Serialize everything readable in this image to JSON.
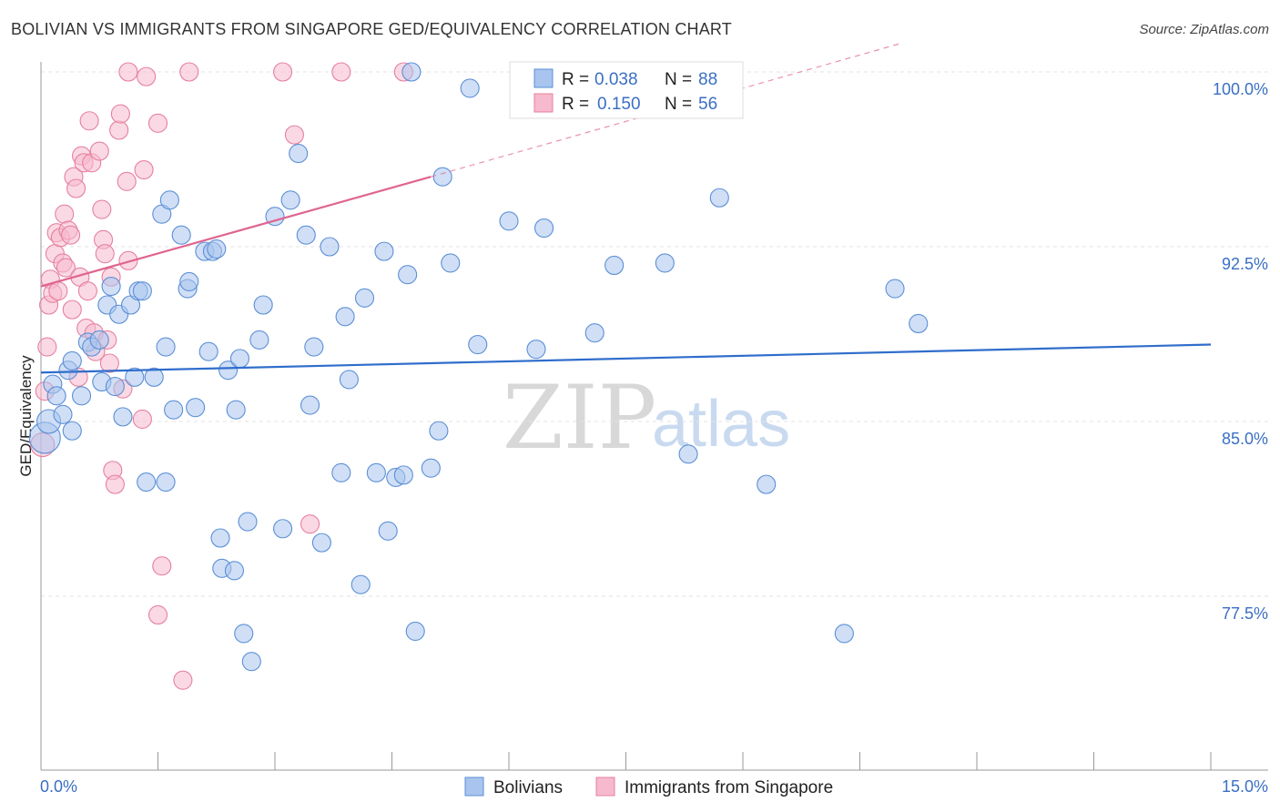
{
  "title": "BOLIVIAN VS IMMIGRANTS FROM SINGAPORE GED/EQUIVALENCY CORRELATION CHART",
  "source": "Source: ZipAtlas.com",
  "watermark": {
    "zip": "ZIP",
    "atlas": "atlas"
  },
  "colors": {
    "blue_fill": "#a9c4ee",
    "blue_stroke": "#5b8fd6",
    "blue_line": "#2f6dcc",
    "pink_fill": "#f6b9cd",
    "pink_stroke": "#e6809f",
    "pink_line": "#e0648f",
    "grid": "#e3e3e3",
    "axis": "#999999"
  },
  "legend": {
    "rows": [
      {
        "r_label": "R =",
        "r_value": "0.038",
        "n_label": "N =",
        "n_value": "88"
      },
      {
        "r_label": "R =",
        "r_value": "0.150",
        "n_label": "N =",
        "n_value": "56"
      }
    ]
  },
  "bottom_legend": {
    "series1": "Bolivians",
    "series2": "Immigrants from Singapore"
  },
  "chart_data": {
    "type": "scatter",
    "xlabel": "",
    "ylabel": "GED/Equivalency",
    "xlim": [
      0,
      15
    ],
    "ylim": [
      70.0,
      101.5
    ],
    "x_tick_labels": {
      "left": "0.0%",
      "right": "15.0%"
    },
    "y_ticks": [
      {
        "value": 100.0,
        "label": "100.0%"
      },
      {
        "value": 92.5,
        "label": "92.5%"
      },
      {
        "value": 85.0,
        "label": "85.0%"
      },
      {
        "value": 77.5,
        "label": "77.5%"
      }
    ],
    "series": [
      {
        "name": "Bolivians",
        "color": "blue",
        "trend": {
          "x0": 0.0,
          "y0": 87.1,
          "x1": 15.0,
          "y1": 88.3
        },
        "points": [
          [
            0.05,
            84.3,
            2
          ],
          [
            0.1,
            85.0,
            1
          ],
          [
            0.15,
            86.6,
            0
          ],
          [
            0.2,
            86.1,
            0
          ],
          [
            0.28,
            85.3,
            0
          ],
          [
            0.35,
            87.2,
            0
          ],
          [
            0.4,
            84.6,
            0
          ],
          [
            0.4,
            87.6,
            0
          ],
          [
            0.52,
            86.1,
            0
          ],
          [
            0.6,
            88.4,
            0
          ],
          [
            0.65,
            88.2,
            0
          ],
          [
            0.75,
            88.5,
            0
          ],
          [
            0.78,
            86.7,
            0
          ],
          [
            0.85,
            90.0,
            0
          ],
          [
            0.9,
            90.8,
            0
          ],
          [
            0.95,
            86.5,
            0
          ],
          [
            1.0,
            89.6,
            0
          ],
          [
            1.05,
            85.2,
            0
          ],
          [
            1.15,
            90.0,
            0
          ],
          [
            1.2,
            86.9,
            0
          ],
          [
            1.25,
            90.6,
            0
          ],
          [
            1.3,
            90.6,
            0
          ],
          [
            1.35,
            82.4,
            0
          ],
          [
            1.45,
            86.9,
            0
          ],
          [
            1.55,
            93.9,
            0
          ],
          [
            1.6,
            88.2,
            0
          ],
          [
            1.6,
            82.4,
            0
          ],
          [
            1.65,
            94.5,
            0
          ],
          [
            1.7,
            85.5,
            0
          ],
          [
            1.8,
            93.0,
            0
          ],
          [
            1.88,
            90.7,
            0
          ],
          [
            1.9,
            91.0,
            0
          ],
          [
            1.98,
            85.6,
            0
          ],
          [
            2.1,
            92.3,
            0
          ],
          [
            2.15,
            88.0,
            0
          ],
          [
            2.2,
            92.3,
            0
          ],
          [
            2.25,
            92.4,
            0
          ],
          [
            2.3,
            80.0,
            0
          ],
          [
            2.32,
            78.7,
            0
          ],
          [
            2.4,
            87.2,
            0
          ],
          [
            2.48,
            78.6,
            0
          ],
          [
            2.5,
            85.5,
            0
          ],
          [
            2.55,
            87.7,
            0
          ],
          [
            2.6,
            75.9,
            0
          ],
          [
            2.65,
            80.7,
            0
          ],
          [
            2.7,
            74.7,
            0
          ],
          [
            2.8,
            88.5,
            0
          ],
          [
            2.85,
            90.0,
            0
          ],
          [
            3.0,
            93.8,
            0
          ],
          [
            3.1,
            80.4,
            0
          ],
          [
            3.2,
            94.5,
            0
          ],
          [
            3.3,
            96.5,
            0
          ],
          [
            3.4,
            93.0,
            0
          ],
          [
            3.45,
            85.7,
            0
          ],
          [
            3.5,
            88.2,
            0
          ],
          [
            3.6,
            79.8,
            0
          ],
          [
            3.7,
            92.5,
            0
          ],
          [
            3.85,
            82.8,
            0
          ],
          [
            3.9,
            89.5,
            0
          ],
          [
            3.95,
            86.8,
            0
          ],
          [
            4.1,
            78.0,
            0
          ],
          [
            4.15,
            90.3,
            0
          ],
          [
            4.3,
            82.8,
            0
          ],
          [
            4.4,
            92.3,
            0
          ],
          [
            4.45,
            80.3,
            0
          ],
          [
            4.55,
            82.6,
            0
          ],
          [
            4.65,
            82.7,
            0
          ],
          [
            4.7,
            91.3,
            0
          ],
          [
            4.75,
            100.0,
            0
          ],
          [
            4.8,
            76.0,
            0
          ],
          [
            5.0,
            83.0,
            0
          ],
          [
            5.1,
            84.6,
            0
          ],
          [
            5.15,
            95.5,
            0
          ],
          [
            5.25,
            91.8,
            0
          ],
          [
            5.5,
            99.3,
            0
          ],
          [
            5.6,
            88.3,
            0
          ],
          [
            6.0,
            93.6,
            0
          ],
          [
            6.35,
            88.1,
            0
          ],
          [
            6.45,
            93.3,
            0
          ],
          [
            7.1,
            88.8,
            0
          ],
          [
            7.35,
            91.7,
            0
          ],
          [
            8.0,
            91.8,
            0
          ],
          [
            8.3,
            83.6,
            0
          ],
          [
            8.7,
            94.6,
            0
          ],
          [
            9.3,
            82.3,
            0
          ],
          [
            10.3,
            75.9,
            0
          ],
          [
            10.95,
            90.7,
            0
          ],
          [
            11.25,
            89.2,
            0
          ]
        ]
      },
      {
        "name": "Immigrants from Singapore",
        "color": "pink",
        "trend": {
          "x0": 0.0,
          "y0": 90.8,
          "x1": 5.0,
          "y1": 95.5,
          "dash_to_x": 11.0,
          "dash_to_y": 101.2
        },
        "points": [
          [
            0.02,
            84.0,
            1
          ],
          [
            0.05,
            86.3,
            0
          ],
          [
            0.08,
            88.2,
            0
          ],
          [
            0.1,
            90.0,
            0
          ],
          [
            0.12,
            91.1,
            0
          ],
          [
            0.15,
            90.5,
            0
          ],
          [
            0.18,
            92.2,
            0
          ],
          [
            0.2,
            93.1,
            0
          ],
          [
            0.22,
            90.6,
            0
          ],
          [
            0.25,
            92.9,
            0
          ],
          [
            0.28,
            91.8,
            0
          ],
          [
            0.3,
            93.9,
            0
          ],
          [
            0.32,
            91.6,
            0
          ],
          [
            0.35,
            93.2,
            0
          ],
          [
            0.38,
            93.0,
            0
          ],
          [
            0.4,
            89.8,
            0
          ],
          [
            0.42,
            95.5,
            0
          ],
          [
            0.45,
            95.0,
            0
          ],
          [
            0.48,
            86.9,
            0
          ],
          [
            0.5,
            91.2,
            0
          ],
          [
            0.52,
            96.4,
            0
          ],
          [
            0.55,
            96.1,
            0
          ],
          [
            0.58,
            89.0,
            0
          ],
          [
            0.6,
            90.6,
            0
          ],
          [
            0.62,
            97.9,
            0
          ],
          [
            0.65,
            96.1,
            0
          ],
          [
            0.68,
            88.8,
            0
          ],
          [
            0.7,
            88.0,
            0
          ],
          [
            0.75,
            96.6,
            0
          ],
          [
            0.78,
            94.1,
            0
          ],
          [
            0.8,
            92.8,
            0
          ],
          [
            0.82,
            92.2,
            0
          ],
          [
            0.88,
            87.5,
            0
          ],
          [
            0.9,
            91.2,
            0
          ],
          [
            0.92,
            82.9,
            0
          ],
          [
            0.95,
            82.3,
            0
          ],
          [
            1.0,
            97.5,
            0
          ],
          [
            1.02,
            98.2,
            0
          ],
          [
            1.05,
            86.4,
            0
          ],
          [
            1.1,
            95.3,
            0
          ],
          [
            1.12,
            91.9,
            0
          ],
          [
            1.12,
            100.0,
            0
          ],
          [
            1.3,
            85.1,
            0
          ],
          [
            1.32,
            95.8,
            0
          ],
          [
            1.35,
            99.8,
            0
          ],
          [
            1.5,
            97.8,
            0
          ],
          [
            1.5,
            76.7,
            0
          ],
          [
            1.55,
            78.8,
            0
          ],
          [
            1.82,
            73.9,
            0
          ],
          [
            1.9,
            100.0,
            0
          ],
          [
            3.1,
            100.0,
            0
          ],
          [
            3.25,
            97.3,
            0
          ],
          [
            3.45,
            80.6,
            0
          ],
          [
            3.85,
            100.0,
            0
          ],
          [
            4.65,
            100.0,
            0
          ],
          [
            0.85,
            88.5,
            0
          ]
        ]
      }
    ]
  }
}
